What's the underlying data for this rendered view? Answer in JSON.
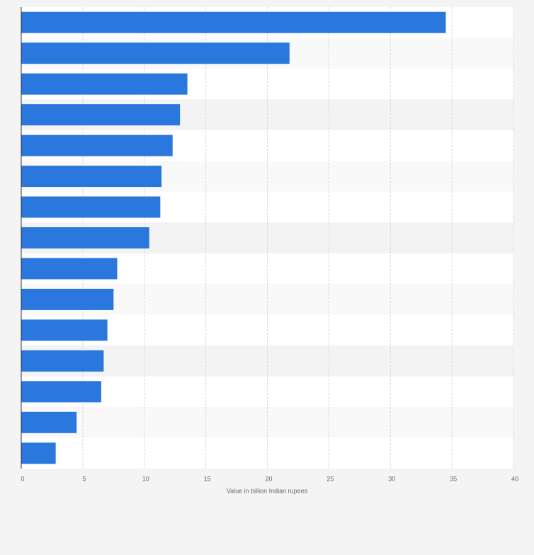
{
  "chart_data": {
    "type": "bar",
    "orientation": "horizontal",
    "categories": [
      null,
      null,
      null,
      null,
      null,
      null,
      null,
      null,
      null,
      null,
      null,
      null,
      null,
      null,
      null
    ],
    "values": [
      34.5,
      21.8,
      13.5,
      12.9,
      12.3,
      11.4,
      11.3,
      10.4,
      7.8,
      7.5,
      7.0,
      6.7,
      6.5,
      4.5,
      2.8
    ],
    "color": "#2a77dd",
    "xlabel": "Value in billion Indian rupees",
    "xlim": [
      0,
      40
    ],
    "xticks": [
      0,
      5,
      10,
      15,
      20,
      25,
      30,
      35,
      40
    ],
    "grid": true
  }
}
